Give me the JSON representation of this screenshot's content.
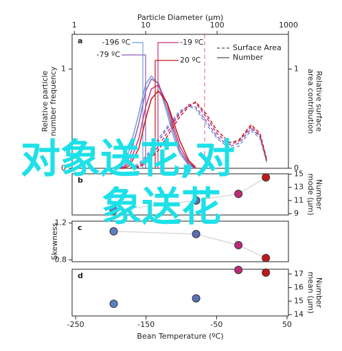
{
  "chart_data": [
    {
      "type": "line",
      "panel_label": "a",
      "title": "Particle Diameter (µm)",
      "x_scale": "log",
      "xlim": [
        0.93,
        1000
      ],
      "xticks": [
        1,
        10,
        100,
        1000
      ],
      "ylabel": "Relative particle\nnumber frequency",
      "y2label": "Relative surface\narea contribution",
      "ylim": [
        0,
        1.35
      ],
      "yticks": [
        0,
        1
      ],
      "y2ticks": [
        0,
        1
      ],
      "legend": [
        "Surface Area",
        "Number"
      ],
      "legend_position": "upper right",
      "number_x": [
        4,
        5,
        6,
        8,
        10,
        12,
        15,
        20,
        25,
        30,
        40,
        50
      ],
      "surface_x": [
        6,
        8,
        10,
        15,
        20,
        30,
        40,
        50,
        70,
        100,
        150,
        200,
        300,
        400,
        500
      ],
      "series": [
        {
          "name": "-196 ºC",
          "color": "#6f9fd8",
          "number": [
            0,
            0.05,
            0.2,
            0.55,
            0.85,
            0.93,
            0.85,
            0.55,
            0.3,
            0.15,
            0.03,
            0
          ],
          "surface": [
            0,
            0.05,
            0.12,
            0.3,
            0.42,
            0.58,
            0.62,
            0.6,
            0.45,
            0.3,
            0.2,
            0.22,
            0.38,
            0.3,
            0.05
          ]
        },
        {
          "name": "-79 ºC",
          "color": "#8a5db5",
          "number": [
            0,
            0.02,
            0.12,
            0.45,
            0.78,
            0.9,
            0.86,
            0.6,
            0.35,
            0.18,
            0.04,
            0
          ],
          "surface": [
            0,
            0.03,
            0.1,
            0.27,
            0.4,
            0.56,
            0.63,
            0.62,
            0.48,
            0.32,
            0.22,
            0.25,
            0.4,
            0.32,
            0.06
          ]
        },
        {
          "name": "-19 ºC",
          "color": "#c8307a",
          "number": [
            0,
            0.01,
            0.06,
            0.3,
            0.62,
            0.8,
            0.84,
            0.65,
            0.4,
            0.22,
            0.06,
            0
          ],
          "surface": [
            0,
            0.02,
            0.07,
            0.22,
            0.36,
            0.55,
            0.64,
            0.66,
            0.52,
            0.35,
            0.24,
            0.27,
            0.42,
            0.33,
            0.07
          ]
        },
        {
          "name": "20 ºC",
          "color": "#c01818",
          "number": [
            0,
            0,
            0.03,
            0.2,
            0.5,
            0.7,
            0.78,
            0.66,
            0.45,
            0.28,
            0.08,
            0.01
          ],
          "surface": [
            0,
            0.01,
            0.05,
            0.18,
            0.32,
            0.52,
            0.62,
            0.67,
            0.55,
            0.38,
            0.26,
            0.28,
            0.44,
            0.35,
            0.08
          ]
        }
      ]
    },
    {
      "type": "scatter",
      "panel_label": "b",
      "y2label": "Number\nmode (µm)",
      "x": [
        -196,
        -79,
        -19,
        20
      ],
      "values": [
        9.5,
        11,
        12,
        14.5
      ],
      "colors": [
        "#5a7fc4",
        "#5a6fb8",
        "#c0287a",
        "#c41818"
      ],
      "ylim": [
        8.8,
        15.05
      ],
      "yticks": [
        9,
        11,
        13,
        15
      ],
      "xlim": [
        -255,
        52
      ],
      "axis": "y2"
    },
    {
      "type": "scatter",
      "panel_label": "c",
      "ylabel": "Skewness",
      "x": [
        -196,
        -79,
        -19,
        20
      ],
      "values": [
        1.11,
        1.08,
        0.96,
        0.82
      ],
      "colors": [
        "#5a7fc4",
        "#5a6fb8",
        "#c0287a",
        "#c41818"
      ],
      "ylim": [
        0.78,
        1.22
      ],
      "yticks": [
        0.8,
        1.2
      ],
      "xlim": [
        -255,
        52
      ],
      "axis": "y"
    },
    {
      "type": "scatter",
      "panel_label": "d",
      "y2label": "Number\nmean (µm)",
      "xlabel": "Bean Temperature (ºC)",
      "x": [
        -196,
        -79,
        -19,
        20
      ],
      "values": [
        14.8,
        15.2,
        17.3,
        17.1
      ],
      "colors": [
        "#5a7fc4",
        "#5a6fb8",
        "#c0287a",
        "#c41818"
      ],
      "ylim": [
        13.9,
        17.35
      ],
      "yticks": [
        14,
        15,
        16,
        17
      ],
      "xlim": [
        -255,
        52
      ],
      "xticks": [
        -250,
        -150,
        -50,
        50
      ],
      "axis": "y2"
    }
  ],
  "overlay_text": [
    "对象送花,对",
    "象送花"
  ]
}
